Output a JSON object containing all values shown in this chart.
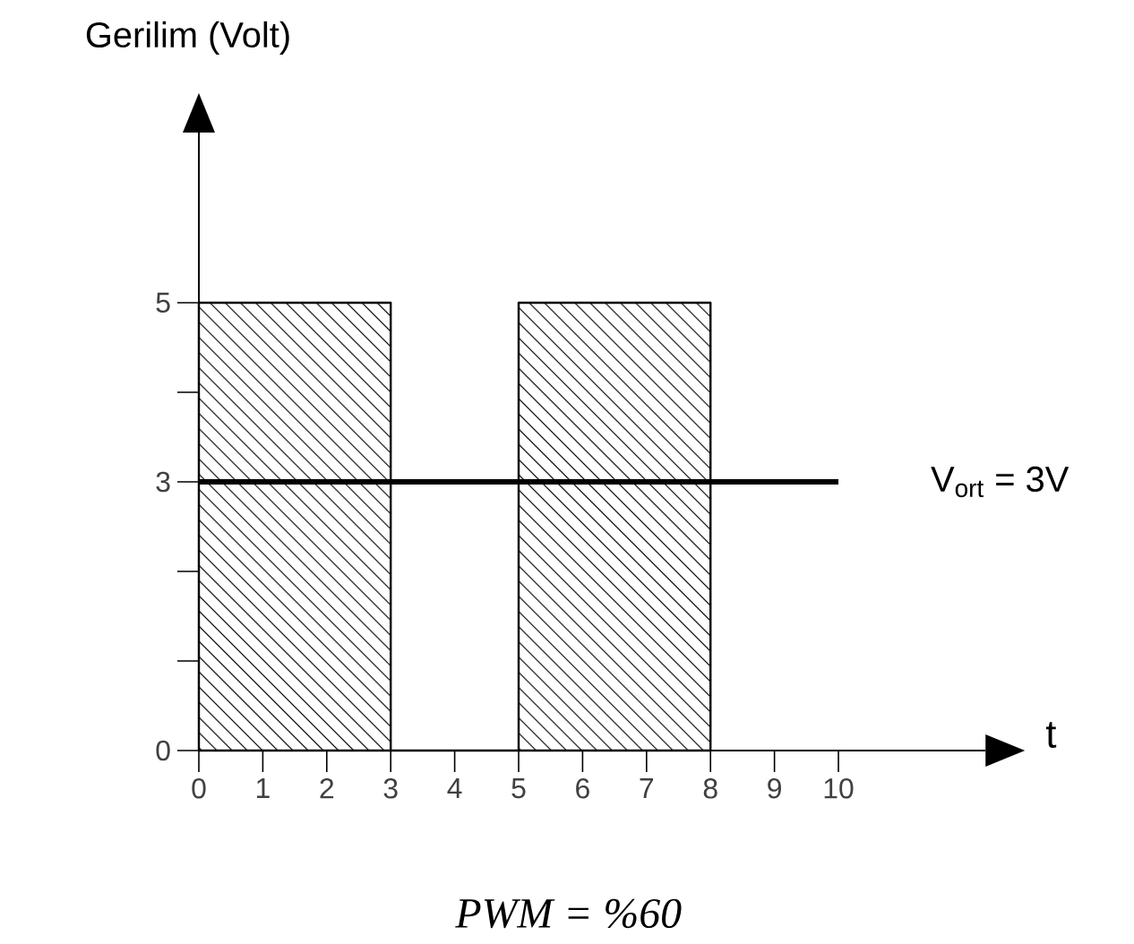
{
  "chart_data": {
    "type": "area",
    "ylabel": "Gerilim (Volt)",
    "xlabel": "t",
    "x": [
      0,
      0,
      3,
      3,
      5,
      5,
      8,
      8
    ],
    "series": [
      {
        "color": "#000000",
        "values": [
          0,
          5,
          5,
          0,
          0,
          5,
          5,
          0
        ]
      }
    ],
    "xlim": [
      0,
      12.3
    ],
    "ylim": [
      0,
      6.9
    ],
    "xticks": [
      0,
      1,
      2,
      3,
      4,
      5,
      6,
      7,
      8,
      9,
      10
    ],
    "yticks": [
      0,
      {
        "value": 1,
        "label": null
      },
      {
        "value": 2,
        "label": null
      },
      3,
      {
        "value": 4,
        "label": null
      },
      5
    ],
    "ref_lines": [
      {
        "axis": "y",
        "value": 3,
        "label": "V$_{ort}$ = 3V",
        "color": "#000000"
      }
    ],
    "annotations": [
      "PWM = %60"
    ]
  }
}
